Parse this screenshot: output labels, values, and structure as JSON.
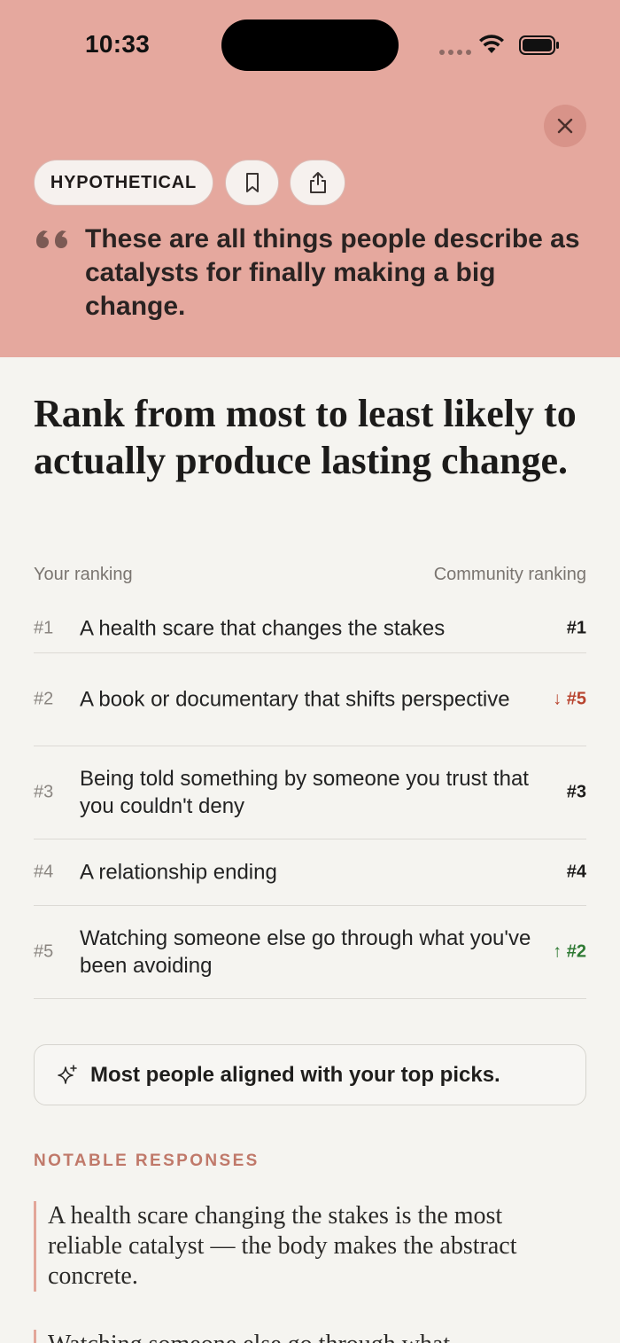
{
  "status_bar": {
    "time": "10:33"
  },
  "header": {
    "tag": "HYPOTHETICAL",
    "quote": "These are all things people describe as catalysts for finally making a big change.",
    "icons": {
      "close": "close-icon",
      "bookmark": "bookmark-icon",
      "share": "share-icon",
      "quote": "quote-icon"
    },
    "background": "#e5a89e"
  },
  "prompt": "Rank from most to least likely to actually produce lasting change.",
  "columns": {
    "left": "Your ranking",
    "right": "Community ranking"
  },
  "rankings": [
    {
      "rank": "#1",
      "text": "A health scare that changes the stakes",
      "community": "#1",
      "trend": "same"
    },
    {
      "rank": "#2",
      "text": "A book or documentary that shifts perspective",
      "community": "↓ #5",
      "trend": "down"
    },
    {
      "rank": "#3",
      "text": "Being told something by someone you trust that you couldn't deny",
      "community": "#3",
      "trend": "same"
    },
    {
      "rank": "#4",
      "text": "A relationship ending",
      "community": "#4",
      "trend": "same"
    },
    {
      "rank": "#5",
      "text": "Watching someone else go through what you've been avoiding",
      "community": "↑ #2",
      "trend": "up"
    }
  ],
  "insight": {
    "icon": "sparkle-icon",
    "text": "Most people aligned with your top picks."
  },
  "notable": {
    "label": "NOTABLE RESPONSES",
    "responses": [
      "A health scare changing the stakes is the most reliable catalyst — the body makes the abstract concrete.",
      "Watching someone else go through what"
    ]
  },
  "colors": {
    "accent": "#c0796a",
    "down": "#b8442f",
    "up": "#2f7a34"
  }
}
